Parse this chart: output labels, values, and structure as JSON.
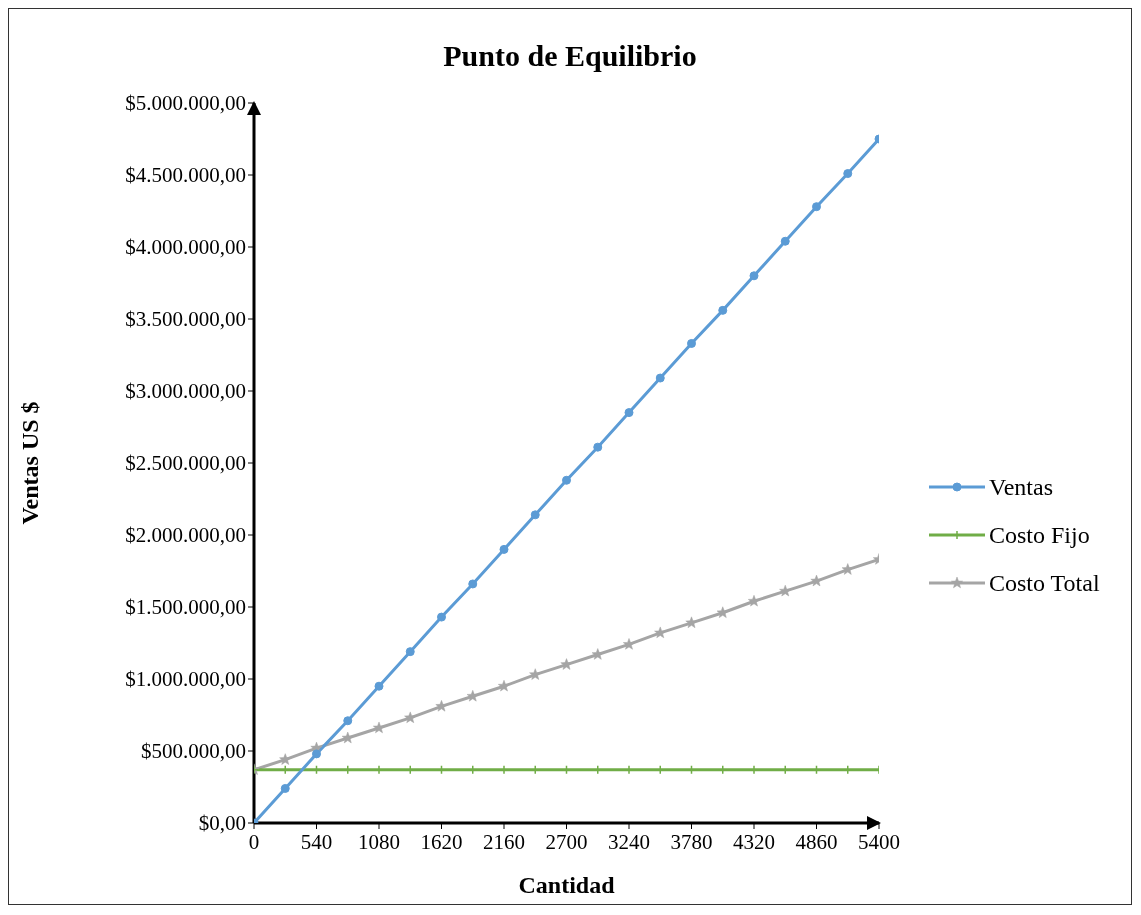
{
  "chart_data": {
    "type": "line",
    "title": "Punto de Equilibrio",
    "xlabel": "Cantidad",
    "ylabel": "Ventas US $",
    "x": [
      0,
      270,
      540,
      810,
      1080,
      1350,
      1620,
      1890,
      2160,
      2430,
      2700,
      2970,
      3240,
      3510,
      3780,
      4050,
      4320,
      4590,
      4860,
      5130,
      5400
    ],
    "series": [
      {
        "name": "Ventas",
        "color": "#5b9bd5",
        "marker": "circle",
        "values": [
          0,
          240000,
          480000,
          710000,
          950000,
          1190000,
          1430000,
          1660000,
          1900000,
          2140000,
          2380000,
          2610000,
          2850000,
          3090000,
          3330000,
          3560000,
          3800000,
          4040000,
          4280000,
          4510000,
          4750000
        ]
      },
      {
        "name": "Costo Fijo",
        "color": "#70ad47",
        "marker": "cross",
        "values": [
          370000,
          370000,
          370000,
          370000,
          370000,
          370000,
          370000,
          370000,
          370000,
          370000,
          370000,
          370000,
          370000,
          370000,
          370000,
          370000,
          370000,
          370000,
          370000,
          370000,
          370000
        ]
      },
      {
        "name": "Costo Total",
        "color": "#a5a5a5",
        "marker": "star",
        "values": [
          370000,
          440000,
          520000,
          590000,
          660000,
          730000,
          810000,
          880000,
          950000,
          1030000,
          1100000,
          1170000,
          1240000,
          1320000,
          1390000,
          1460000,
          1540000,
          1610000,
          1680000,
          1760000,
          1830000
        ]
      }
    ],
    "xlim": [
      0,
      5400
    ],
    "xticks": [
      0,
      540,
      1080,
      1620,
      2160,
      2700,
      3240,
      3780,
      4320,
      4860,
      5400
    ],
    "ylim": [
      0,
      5000000
    ],
    "yticks": [
      {
        "value": 0,
        "label": "$0,00"
      },
      {
        "value": 500000,
        "label": "$500.000,00"
      },
      {
        "value": 1000000,
        "label": "$1.000.000,00"
      },
      {
        "value": 1500000,
        "label": "$1.500.000,00"
      },
      {
        "value": 2000000,
        "label": "$2.000.000,00"
      },
      {
        "value": 2500000,
        "label": "$2.500.000,00"
      },
      {
        "value": 3000000,
        "label": "$3.000.000,00"
      },
      {
        "value": 3500000,
        "label": "$3.500.000,00"
      },
      {
        "value": 4000000,
        "label": "$4.000.000,00"
      },
      {
        "value": 4500000,
        "label": "$4.500.000,00"
      },
      {
        "value": 5000000,
        "label": "$5.000.000,00"
      }
    ],
    "grid": false,
    "legend": "right",
    "line_style": "solid"
  }
}
